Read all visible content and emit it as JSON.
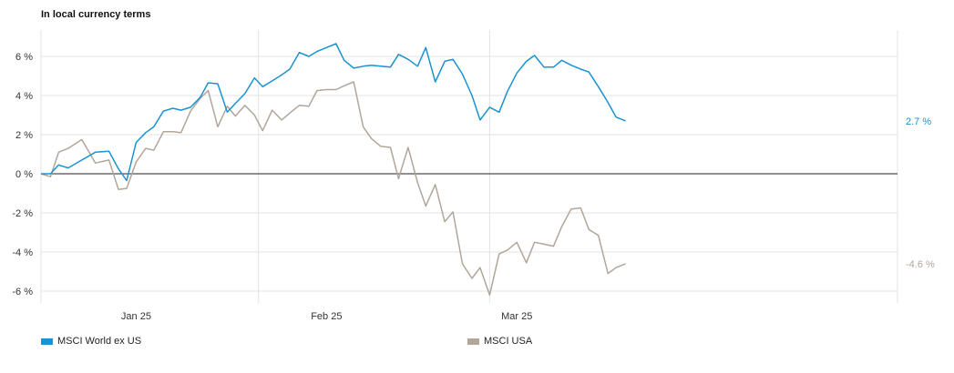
{
  "chart_data": {
    "type": "line",
    "title": "In local currency terms",
    "ylim": [
      -6.5,
      7.2
    ],
    "yticks": [
      6,
      4,
      2,
      0,
      -2,
      -4,
      -6
    ],
    "ytick_labels": [
      "6 %",
      "4 %",
      "2 %",
      "0 %",
      "-2 %",
      "-4 %",
      "-6 %"
    ],
    "xlim": [
      0,
      63
    ],
    "xtick_positions": [
      7,
      21,
      35
    ],
    "xtick_labels": [
      "Jan 25",
      "Feb 25",
      "Mar 25"
    ],
    "grid": true,
    "colors": {
      "world": "#1a93cf",
      "usa": "#b2a69a",
      "zero_line": "#222222",
      "grid": "#e3e3e3"
    },
    "series": [
      {
        "name": "MSCI World ex US",
        "end_label": "2.7 %",
        "x": [
          0,
          0.7,
          1.3,
          2,
          3,
          4,
          5,
          5.7,
          6.3,
          7,
          7.7,
          8.3,
          9,
          9.7,
          10.3,
          11,
          11.7,
          12.3,
          13,
          13.7,
          14.3,
          15,
          15.7,
          16.3,
          17,
          17.7,
          18.3,
          19,
          19.7,
          20.3,
          21,
          21.7,
          22.3,
          23,
          23.7,
          24.3,
          25,
          25.7,
          26.3,
          27,
          27.7,
          28.3,
          29,
          29.7,
          30.3,
          31,
          31.7,
          32.3,
          33,
          33.7,
          34.3,
          35,
          35.7,
          36.3,
          37,
          37.7,
          38.3,
          39,
          39.7,
          40.3,
          41,
          41.7,
          42.3,
          43
        ],
        "values": [
          0,
          0,
          0.45,
          0.3,
          0.7,
          1.1,
          1.15,
          0.25,
          -0.35,
          1.6,
          2.1,
          2.4,
          3.2,
          3.35,
          3.25,
          3.4,
          3.9,
          4.65,
          4.6,
          3.15,
          3.6,
          4.1,
          4.9,
          4.45,
          4.75,
          5.05,
          5.35,
          6.2,
          6.0,
          6.25,
          6.45,
          6.65,
          5.8,
          5.4,
          5.5,
          5.55,
          5.5,
          5.45,
          6.1,
          5.85,
          5.5,
          6.45,
          4.7,
          5.75,
          5.85,
          5.1,
          4.0,
          2.75,
          3.4,
          3.15,
          4.2,
          5.15,
          5.75,
          6.05,
          5.45,
          5.45,
          5.8,
          5.55,
          5.35,
          5.2,
          4.45,
          3.65,
          2.9,
          2.7
        ]
      },
      {
        "name": "MSCI USA",
        "end_label": "-4.6 %",
        "x": [
          0,
          0.7,
          1.3,
          2,
          3,
          4,
          5,
          5.7,
          6.3,
          7,
          7.7,
          8.3,
          9,
          9.7,
          10.3,
          11,
          11.7,
          12.3,
          13,
          13.7,
          14.3,
          15,
          15.7,
          16.3,
          17,
          17.7,
          18.3,
          19,
          19.7,
          20.3,
          21,
          21.7,
          22.3,
          23,
          23.7,
          24.3,
          25,
          25.7,
          26.3,
          27,
          27.7,
          28.3,
          29,
          29.7,
          30.3,
          31,
          31.7,
          32.3,
          33,
          33.7,
          34.3,
          35,
          35.7,
          36.3,
          37,
          37.7,
          38.3,
          39,
          39.7,
          40.3,
          41,
          41.7,
          42.3,
          43
        ],
        "values": [
          0,
          -0.15,
          1.1,
          1.3,
          1.75,
          0.55,
          0.7,
          -0.8,
          -0.75,
          0.6,
          1.3,
          1.2,
          2.15,
          2.15,
          2.1,
          3.2,
          3.85,
          4.25,
          2.4,
          3.45,
          2.95,
          3.5,
          3.0,
          2.2,
          3.25,
          2.75,
          3.1,
          3.5,
          3.45,
          4.25,
          4.3,
          4.3,
          4.5,
          4.7,
          2.4,
          1.8,
          1.4,
          1.35,
          -0.25,
          1.35,
          -0.45,
          -1.65,
          -0.55,
          -2.45,
          -1.95,
          -4.6,
          -5.35,
          -4.8,
          -6.2,
          -4.1,
          -3.9,
          -3.5,
          -4.55,
          -3.5,
          -3.6,
          -3.7,
          -2.7,
          -1.8,
          -1.75,
          -2.85,
          -3.15,
          -5.1,
          -4.8,
          -4.6
        ]
      }
    ]
  },
  "legend": {
    "world_label": "MSCI World ex US",
    "usa_label": "MSCI USA"
  }
}
